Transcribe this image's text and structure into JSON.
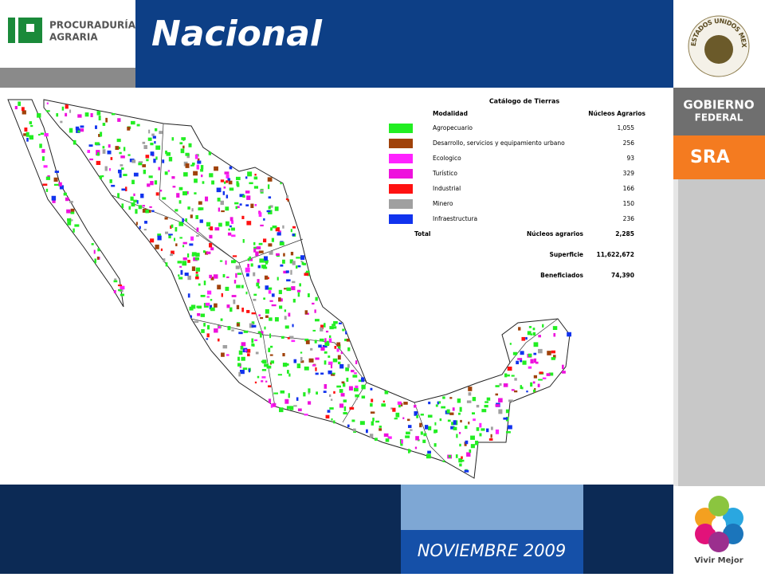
{
  "header": {
    "logo_line1": "PROCURADURÍA",
    "logo_line2": "AGRARIA",
    "title": "Nacional"
  },
  "sidebar": {
    "seal_text": "ESTADOS UNIDOS MEXICANOS",
    "gobierno": "GOBIERNO",
    "federal": "FEDERAL",
    "sra": "SRA",
    "vivir": "Vivir Mejor"
  },
  "legend": {
    "title": "Catálogo de Tierras",
    "col_modalidad": "Modalidad",
    "col_nucleos": "Núcleos Agrarios",
    "rows": [
      {
        "label": "Agropecuario",
        "count": "1,055",
        "color": "#22ee22"
      },
      {
        "label": "Desarrollo, servicios y equipamiento urbano",
        "count": "256",
        "color": "#a0420a"
      },
      {
        "label": "Ecologico",
        "count": "93",
        "color": "#ff22ff"
      },
      {
        "label": "Turístico",
        "count": "329",
        "color": "#ee11dd"
      },
      {
        "label": "Industrial",
        "count": "166",
        "color": "#ff1111"
      },
      {
        "label": "Minero",
        "count": "150",
        "color": "#a0a0a0"
      },
      {
        "label": "Infraestructura",
        "count": "236",
        "color": "#1133ee"
      }
    ],
    "total_label": "Total",
    "totals": [
      {
        "label": "Núcleos agrarios",
        "value": "2,285"
      },
      {
        "label": "Superficie",
        "value": "11,622,672"
      },
      {
        "label": "Beneficiados",
        "value": "74,390"
      }
    ]
  },
  "footer": {
    "date": "NOVIEMBRE 2009"
  }
}
